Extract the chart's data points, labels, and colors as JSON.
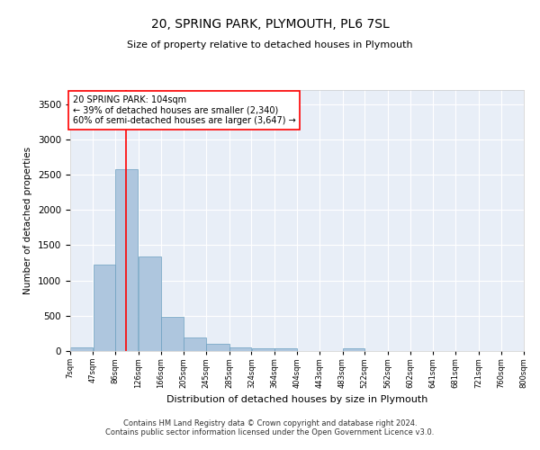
{
  "title": "20, SPRING PARK, PLYMOUTH, PL6 7SL",
  "subtitle": "Size of property relative to detached houses in Plymouth",
  "xlabel": "Distribution of detached houses by size in Plymouth",
  "ylabel": "Number of detached properties",
  "bar_color": "#aec6de",
  "bar_edge_color": "#6a9fc0",
  "background_color": "#e8eef7",
  "grid_color": "#ffffff",
  "annotation_text": "20 SPRING PARK: 104sqm\n← 39% of detached houses are smaller (2,340)\n60% of semi-detached houses are larger (3,647) →",
  "redline_x": 104,
  "bins": [
    7,
    47,
    86,
    126,
    166,
    205,
    245,
    285,
    324,
    364,
    404,
    443,
    483,
    522,
    562,
    602,
    641,
    681,
    721,
    760,
    800
  ],
  "bar_heights": [
    50,
    1225,
    2580,
    1340,
    490,
    195,
    105,
    50,
    40,
    40,
    0,
    0,
    40,
    0,
    0,
    0,
    0,
    0,
    0,
    0
  ],
  "ylim": [
    0,
    3700
  ],
  "yticks": [
    0,
    500,
    1000,
    1500,
    2000,
    2500,
    3000,
    3500
  ],
  "footer_line1": "Contains HM Land Registry data © Crown copyright and database right 2024.",
  "footer_line2": "Contains public sector information licensed under the Open Government Licence v3.0."
}
